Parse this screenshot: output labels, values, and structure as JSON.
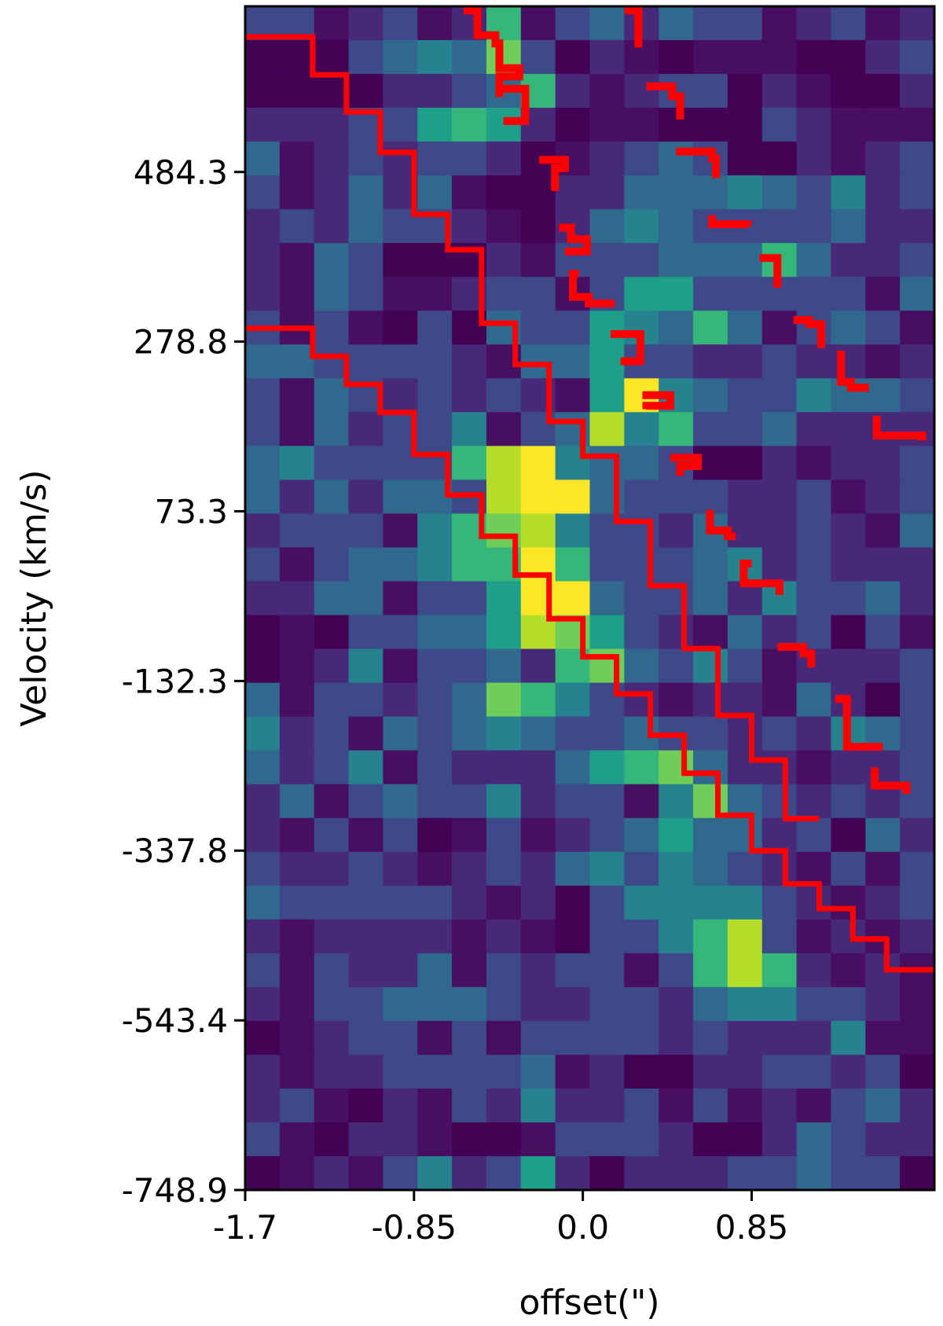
{
  "chart_data": {
    "type": "heatmap",
    "title": "",
    "xlabel": "offset(\")",
    "ylabel": "Velocity (km/s)",
    "x_ticks": [
      "-1.7",
      "-0.85",
      "0.0",
      "0.85"
    ],
    "y_ticks": [
      "484.3",
      "278.8",
      "73.3",
      "-132.3",
      "-337.8",
      "-543.4",
      "-748.9"
    ],
    "x_tick_values": [
      -1.7,
      -0.85,
      0.0,
      0.85
    ],
    "y_tick_values": [
      484.3,
      278.8,
      73.3,
      -132.3,
      -337.8,
      -543.4,
      -748.9
    ],
    "xlim": [
      -1.7,
      1.77
    ],
    "ylim": [
      -748.9,
      685
    ],
    "grid": false,
    "colormap": "viridis",
    "line_color": "#ff0000",
    "cell_grid": {
      "cols": 20,
      "rows": 35
    },
    "intensity_rows": [
      "22.12.16.2313",
      "00023437201.0...001221",
      "0000112361.12201.00116",
      "1112256510..00021.....",
      "3.1212210.1232001.1241",
      "2.1313.0011333432412210",
      "1213221.0134322223112",
      "1.320001.22233363112313",
      "1.32..122.25522222.3320",
      "2.2.02032254363.232..31",
      "3322221.3352211211.142",
      "2.3212121.5943224332213",
      "2.31224.2384622311111.0",
      "3422226894332001.11232",
      "31313328993222112.1231",
      "1222.4678422131121.3133",
      "2.2334669622234121111",
      "1133.2259932231422311",
      "0.02233587521.31202.1",
      "0.14.2231673242.11121",
      "3.2212376421.11.3102",
      "412.3234322322121432",
      "3124.21113567311.11213",
      "13.23224122.47321212231",
      "1.2.20.2.1235331203131",
      "21121.1213424321.2.21",
      "3222221.102444421.1223",
      "1.1111.1.0224682.1.1212",
      "2.2113.2122.26861.1.221",
      "1.22333211221344221.1.1",
      "0.122.2.2222121114...121",
      "1.1122223.1001122120.32",
      "12.01.214112.2.1.2312",
      "2.011.00.2221001321112",
      "0.1.24125101112232208"
    ],
    "series": [
      {
        "x": [
          -1.7,
          -1.36,
          -1.36,
          -1.19,
          -1.19,
          -1.02,
          -1.02,
          -0.85,
          -0.85,
          -0.68,
          -0.68,
          -0.51,
          -0.51,
          -0.34,
          -0.34,
          -0.17,
          -0.17,
          0.0,
          0.0,
          0.17,
          0.17,
          0.34,
          0.34,
          0.51,
          0.51,
          0.68,
          0.68,
          0.85,
          0.85,
          1.02,
          1.02,
          1.19,
          1.19,
          1.36,
          1.36,
          1.53,
          1.53,
          1.77
        ],
        "y": [
          295,
          295,
          261,
          261,
          227,
          227,
          193,
          193,
          142,
          142,
          93,
          93,
          43,
          43,
          -4,
          -4,
          -57,
          -57,
          -103,
          -103,
          -148,
          -148,
          -198,
          -198,
          -244,
          -244,
          -295,
          -295,
          -338,
          -338,
          -378,
          -378,
          -408,
          -408,
          -445,
          -445,
          -482,
          -482
        ]
      },
      {
        "x": [
          -1.7,
          -1.36,
          -1.36,
          -1.19,
          -1.19,
          -1.02,
          -1.02,
          -0.85,
          -0.85,
          -0.68,
          -0.68,
          -0.51,
          -0.51,
          -0.34,
          -0.34,
          -0.17,
          -0.17,
          0.0,
          0.0,
          0.17,
          0.17,
          0.34,
          0.34,
          0.51,
          0.51,
          0.68,
          0.68,
          0.85,
          0.85,
          1.02,
          1.02,
          1.19
        ],
        "y": [
          648,
          648,
          602,
          602,
          557,
          557,
          508,
          508,
          433,
          433,
          390,
          390,
          301,
          301,
          251,
          251,
          182,
          182,
          140,
          140,
          61,
          61,
          -17,
          -17,
          -93,
          -93,
          -174,
          -174,
          -228,
          -228,
          -299,
          -299
        ]
      },
      {
        "x": [
          -0.6,
          -0.53,
          -0.53,
          -0.44,
          -0.44,
          -0.42,
          -0.42,
          -0.32,
          -0.32,
          -0.42,
          -0.42,
          -0.42
        ],
        "y": [
          680,
          680,
          650,
          650,
          640,
          640,
          610,
          610,
          600,
          600,
          575,
          575
        ]
      },
      {
        "x": [
          -0.4,
          -0.29,
          -0.29,
          -0.29,
          -0.29,
          -0.4
        ],
        "y": [
          585,
          585,
          573,
          573,
          546,
          546
        ]
      },
      {
        "x": [
          -0.22,
          -0.09,
          -0.09,
          -0.14,
          -0.14,
          -0.16
        ],
        "y": [
          499,
          499,
          489,
          489,
          466,
          466
        ]
      },
      {
        "x": [
          -0.12,
          -0.06,
          -0.06,
          0.02,
          0.02,
          -0.09
        ],
        "y": [
          417,
          417,
          403,
          403,
          388,
          388
        ]
      },
      {
        "x": [
          -0.02,
          -0.05,
          -0.05,
          0.03,
          0.03,
          0.16
        ],
        "y": [
          361,
          361,
          333,
          333,
          325,
          325
        ]
      },
      {
        "x": [
          0.14,
          0.29,
          0.29,
          0.29,
          0.29,
          0.19
        ],
        "y": [
          288,
          288,
          277,
          277,
          255,
          255
        ]
      },
      {
        "x": [
          0.3,
          0.44,
          0.44,
          0.32,
          0.32,
          0.32
        ],
        "y": [
          214,
          214,
          201,
          201,
          197,
          197
        ]
      },
      {
        "x": [
          0.44,
          0.58,
          0.58,
          0.49,
          0.49,
          0.47
        ],
        "y": [
          138,
          138,
          128,
          128,
          121,
          121
        ]
      },
      {
        "x": [
          0.64,
          0.64,
          0.64,
          0.73,
          0.73,
          0.77
        ],
        "y": [
          75,
          75,
          50,
          50,
          43,
          43
        ]
      },
      {
        "x": [
          0.85,
          0.81,
          0.81,
          0.99,
          0.99,
          0.99
        ],
        "y": [
          10,
          10,
          -14,
          -14,
          -28,
          -28
        ]
      },
      {
        "x": [
          0.98,
          1.11,
          1.11,
          1.15,
          1.15,
          1.17
        ],
        "y": [
          -91,
          -91,
          -99,
          -99,
          -111,
          -111
        ]
      },
      {
        "x": [
          1.27,
          1.33,
          1.33,
          1.33,
          1.33,
          1.51
        ],
        "y": [
          -154,
          -154,
          -202,
          -202,
          -212,
          -212
        ]
      },
      {
        "x": [
          1.47,
          1.47,
          1.47,
          1.63,
          1.63,
          1.63
        ],
        "y": [
          -237,
          -237,
          -259,
          -259,
          -269,
          -269
        ]
      },
      {
        "x": [
          0.21,
          0.28,
          0.28,
          0.28,
          0.28,
          0.28
        ],
        "y": [
          680,
          680,
          672,
          672,
          635,
          635
        ]
      },
      {
        "x": [
          0.32,
          0.45,
          0.45,
          0.49,
          0.49,
          0.49
        ],
        "y": [
          588,
          588,
          576,
          576,
          548,
          548
        ]
      },
      {
        "x": [
          0.47,
          0.65,
          0.65,
          0.67,
          0.67,
          0.67
        ],
        "y": [
          509,
          509,
          501,
          501,
          477,
          477
        ]
      },
      {
        "x": [
          0.65,
          0.65,
          0.65,
          0.83,
          0.83,
          0.83
        ],
        "y": [
          432,
          432,
          421,
          421,
          418,
          418
        ]
      },
      {
        "x": [
          0.89,
          0.98,
          0.98,
          0.98,
          0.98,
          0.98
        ],
        "y": [
          380,
          380,
          371,
          371,
          344,
          344
        ]
      },
      {
        "x": [
          1.06,
          1.14,
          1.14,
          1.2,
          1.2,
          1.2
        ],
        "y": [
          305,
          305,
          300,
          300,
          271,
          271
        ]
      },
      {
        "x": [
          1.3,
          1.3,
          1.3,
          1.35,
          1.35,
          1.44
        ],
        "y": [
          268,
          268,
          230,
          230,
          223,
          223
        ]
      },
      {
        "x": [
          1.48,
          1.48,
          1.48,
          1.71,
          1.71,
          1.71
        ],
        "y": [
          189,
          189,
          165,
          165,
          159,
          159
        ]
      }
    ]
  }
}
